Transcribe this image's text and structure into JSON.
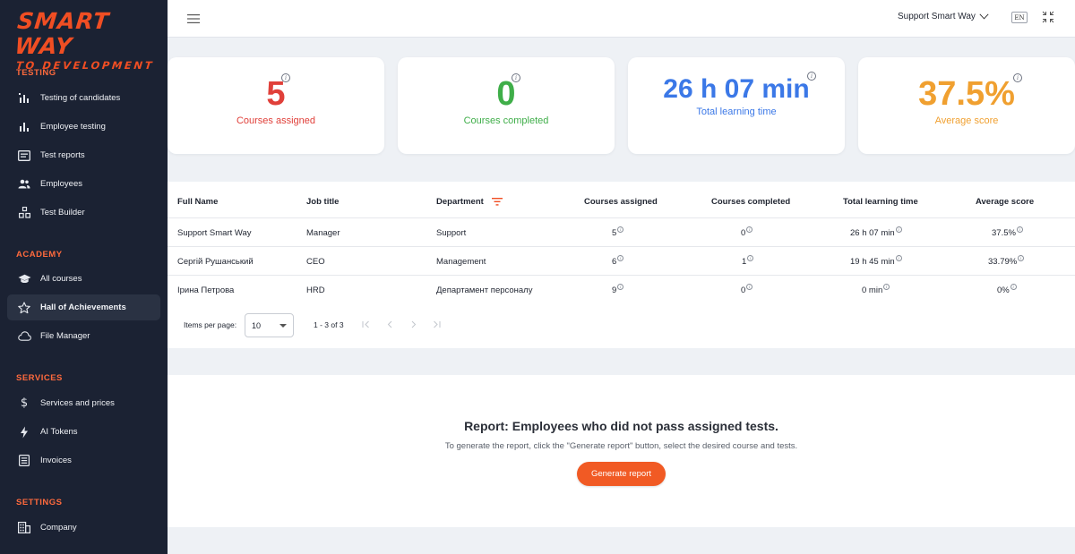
{
  "logo": {
    "main": "SMART WAY",
    "sub": "TO DEVELOPMENT"
  },
  "sidebar": {
    "sections": [
      {
        "title": "TESTING",
        "items": [
          {
            "label": "Testing of candidates",
            "icon": "bar-chart-icon"
          },
          {
            "label": "Employee testing",
            "icon": "bar-chart-icon"
          },
          {
            "label": "Test reports",
            "icon": "report-icon"
          },
          {
            "label": "Employees",
            "icon": "users-icon"
          },
          {
            "label": "Test Builder",
            "icon": "builder-icon"
          }
        ]
      },
      {
        "title": "ACADEMY",
        "items": [
          {
            "label": "All courses",
            "icon": "graduation-cap-icon"
          },
          {
            "label": "Hall of Achievements",
            "icon": "star-icon",
            "active": true
          },
          {
            "label": "File Manager",
            "icon": "cloud-icon"
          }
        ]
      },
      {
        "title": "SERVICES",
        "items": [
          {
            "label": "Services and prices",
            "icon": "dollar-icon"
          },
          {
            "label": "AI Tokens",
            "icon": "lightning-icon"
          },
          {
            "label": "Invoices",
            "icon": "invoice-icon"
          }
        ]
      },
      {
        "title": "SETTINGS",
        "items": [
          {
            "label": "Company",
            "icon": "building-icon"
          }
        ]
      }
    ]
  },
  "topbar": {
    "user": "Support Smart Way",
    "lang": "EN"
  },
  "stats": [
    {
      "value": "5",
      "caption": "Courses assigned",
      "color": "#e0403a"
    },
    {
      "value": "0",
      "caption": "Courses completed",
      "color": "#3fae49"
    },
    {
      "value": "26 h 07 min",
      "caption": "Total learning time",
      "color": "#3b78e7"
    },
    {
      "value": "37.5%",
      "caption": "Average score",
      "color": "#f0a030"
    }
  ],
  "table": {
    "headers": [
      "Full Name",
      "Job title",
      "Department",
      "Courses assigned",
      "Courses completed",
      "Total learning time",
      "Average score"
    ],
    "rows": [
      [
        "Support Smart Way",
        "Manager",
        "Support",
        "5",
        "0",
        "26 h 07 min",
        "37.5%"
      ],
      [
        "Сергій Рушанський",
        "CEO",
        "Management",
        "6",
        "1",
        "19 h 45 min",
        "33.79%"
      ],
      [
        "Ірина Петрова",
        "HRD",
        "Департамент персоналу",
        "9",
        "0",
        "0 min",
        "0%"
      ]
    ]
  },
  "pagination": {
    "items_per_page_label": "Items per page:",
    "page_size": "10",
    "range": "1 - 3 of 3"
  },
  "report": {
    "title": "Report: Employees who did not pass assigned tests.",
    "description": "To generate the report, click the \"Generate report\" button, select the desired course and tests.",
    "button": "Generate report"
  },
  "colors": {
    "accent": "#f15a24",
    "sidebar_bg": "#1b2233"
  }
}
